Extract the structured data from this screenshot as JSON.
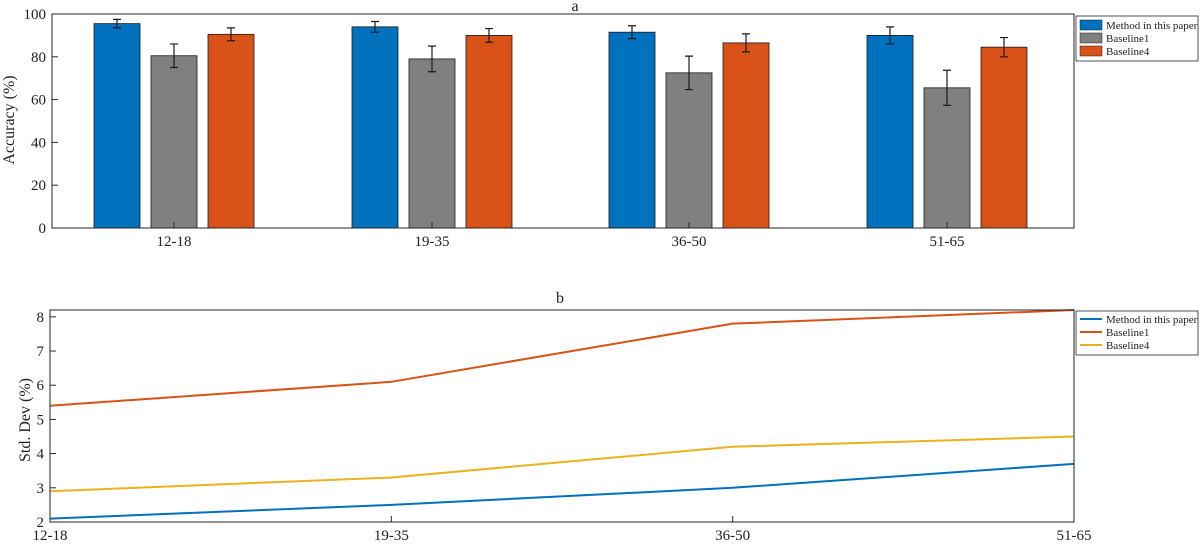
{
  "chart_data": [
    {
      "type": "bar",
      "title": "a",
      "xlabel": "",
      "ylabel": "Accuracy (%)",
      "ylim": [
        0,
        100
      ],
      "yticks": [
        0,
        20,
        40,
        60,
        80,
        100
      ],
      "categories": [
        "12-18",
        "19-35",
        "36-50",
        "51-65"
      ],
      "series": [
        {
          "name": "Method in this paper",
          "values": [
            95.5,
            94,
            91.5,
            90
          ],
          "errors": [
            2,
            2.5,
            3,
            4
          ],
          "color": "#0072BD"
        },
        {
          "name": "Baseline1",
          "values": [
            80.5,
            79,
            72.5,
            65.5
          ],
          "errors": [
            5.5,
            6,
            7.8,
            8.2
          ],
          "color": "#808080"
        },
        {
          "name": "Baseline4",
          "values": [
            90.5,
            90,
            86.5,
            84.5
          ],
          "errors": [
            3,
            3.2,
            4.2,
            4.5
          ],
          "color": "#D95319"
        }
      ],
      "grid": false,
      "legend_position": "outside-top-right"
    },
    {
      "type": "line",
      "title": "b",
      "xlabel": "",
      "ylabel": "Std. Dev (%)",
      "ylim": [
        2,
        8.2
      ],
      "yticks": [
        2,
        3,
        4,
        5,
        6,
        7,
        8
      ],
      "categories": [
        "12-18",
        "19-35",
        "36-50",
        "51-65"
      ],
      "series": [
        {
          "name": "Method in this paper",
          "values": [
            2.1,
            2.5,
            3.0,
            3.7
          ],
          "color": "#0072BD"
        },
        {
          "name": "Baseline1",
          "values": [
            5.4,
            6.1,
            7.8,
            8.2
          ],
          "color": "#D95319"
        },
        {
          "name": "Baseline4",
          "values": [
            2.9,
            3.3,
            4.2,
            4.5
          ],
          "color": "#EDB120"
        }
      ],
      "grid": false,
      "legend_position": "outside-top-right"
    }
  ]
}
